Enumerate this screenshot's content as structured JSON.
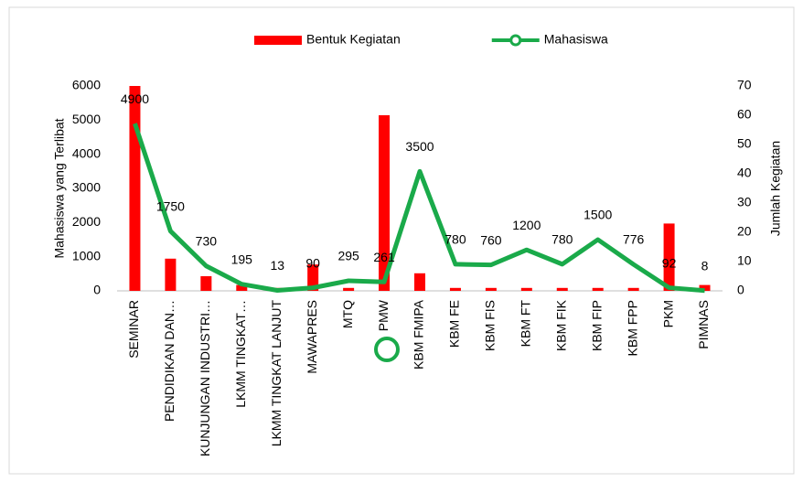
{
  "chart_data": {
    "type": "bar-line",
    "categories": [
      "SEMINAR",
      "PENDIDIKAN DAN…",
      "KUNJUNGAN INDUSTRI…",
      "LKMM TINGKAT…",
      "LKMM TINGKAT LANJUT",
      "MAWAPRES",
      "MTQ",
      "PMW",
      "KBM FMIPA",
      "KBM FE",
      "KBM FIS",
      "KBM FT",
      "KBM FIK",
      "KBM FIP",
      "KBM FPP",
      "PKM",
      "PIMNAS"
    ],
    "series": [
      {
        "name": "Bentuk Kegiatan",
        "type": "bar",
        "axis": "y2",
        "color": "#ff0000",
        "values": [
          70,
          11,
          5,
          2,
          1,
          9,
          1,
          60,
          6,
          1,
          1,
          1,
          1,
          1,
          1,
          23,
          2
        ]
      },
      {
        "name": "Mahasiswa",
        "type": "line",
        "axis": "y",
        "color": "#1aaa4a",
        "values": [
          4900,
          1750,
          730,
          195,
          13,
          90,
          295,
          261,
          3500,
          780,
          760,
          1200,
          780,
          1500,
          776,
          92,
          8
        ]
      }
    ],
    "ylabel": "Mahasiswa yang Terlibat",
    "y2label": "Jumlah Kegiatan",
    "ylim": [
      0,
      6000
    ],
    "yticks": [
      0,
      1000,
      2000,
      3000,
      4000,
      5000,
      6000
    ],
    "y2lim": [
      0,
      70
    ],
    "y2ticks": [
      0,
      10,
      20,
      30,
      40,
      50,
      60,
      70
    ],
    "legend": "top"
  }
}
